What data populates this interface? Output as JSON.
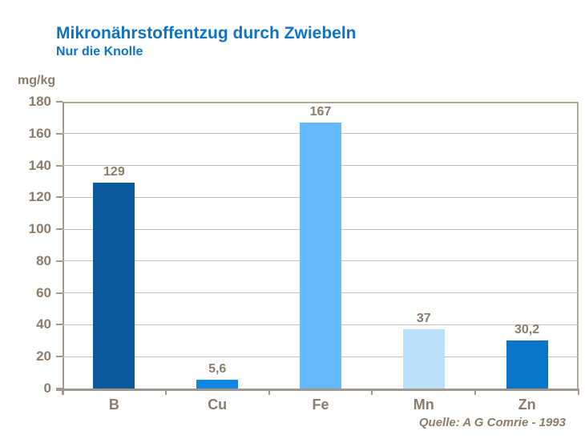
{
  "colors": {
    "title_blue": "#0d73c4",
    "text_brown": "#8a7c6b",
    "grid": "#c8beb2",
    "axis": "#a3968a",
    "plot_border": "#b3a99b",
    "background": "#ffffff"
  },
  "chart_data": {
    "type": "bar",
    "title": "Mikronährstoffentzug durch Zwiebeln",
    "subtitle": "Nur die Knolle",
    "unit_label": "mg/kg",
    "source": "Quelle: A G Comrie - 1993",
    "categories": [
      "B",
      "Cu",
      "Fe",
      "Mn",
      "Zn"
    ],
    "values": [
      129,
      5.6,
      167,
      37,
      30.2
    ],
    "value_labels": [
      "129",
      "5,6",
      "167",
      "37",
      "30,2"
    ],
    "bar_colors": [
      "#0b5a9e",
      "#0f87e0",
      "#66b9fa",
      "#b9dffa",
      "#0875c8"
    ],
    "ylabel": "mg/kg",
    "xlabel": "",
    "ylim": [
      0,
      180
    ],
    "ytick_step": 20,
    "grid": true,
    "legend": "none"
  }
}
